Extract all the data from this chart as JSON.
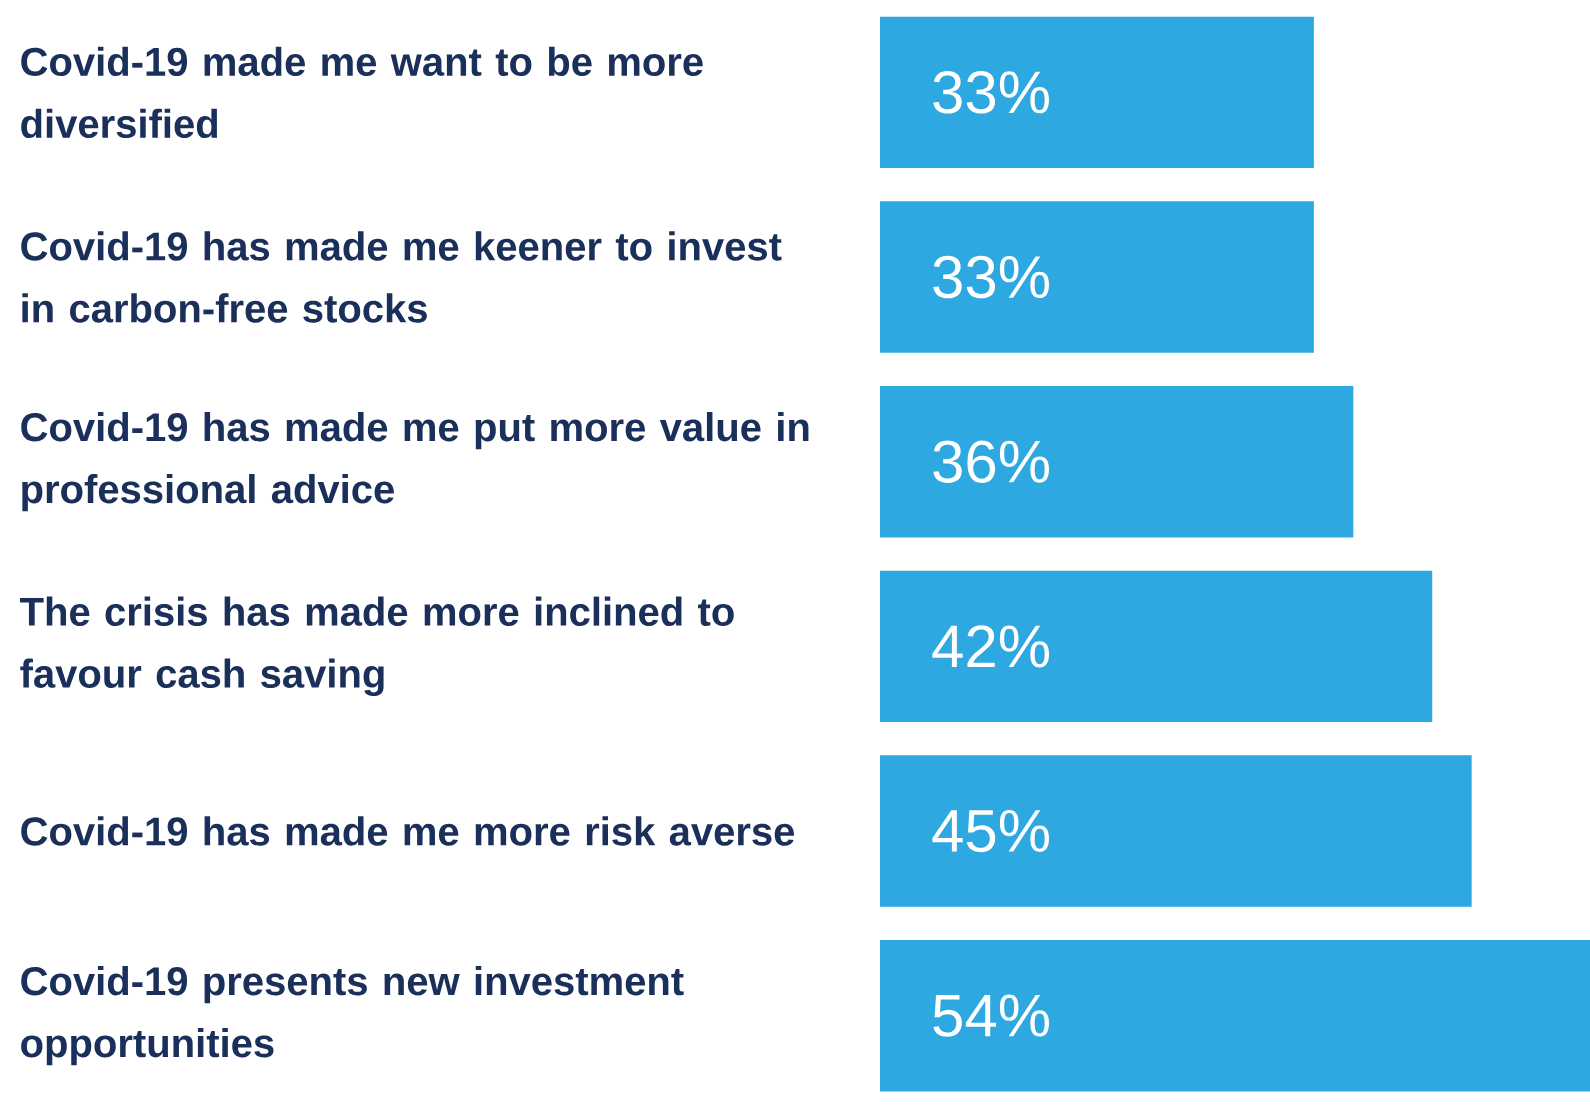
{
  "chart_data": {
    "type": "bar",
    "orientation": "horizontal",
    "categories": [
      "Covid-19 made me want to be more diversified",
      "Covid-19 has made me keener to invest in carbon-free stocks",
      "Covid-19 has made me put more value in professional advice",
      "The crisis has made more inclined to favour cash saving",
      "Covid-19 has made me more risk averse",
      "Covid-19 presents new investment opportunities"
    ],
    "values": [
      33,
      33,
      36,
      42,
      45,
      54
    ],
    "value_labels": [
      "33%",
      "33%",
      "36%",
      "42%",
      "45%",
      "54%"
    ],
    "color": "#2ea8e0"
  }
}
